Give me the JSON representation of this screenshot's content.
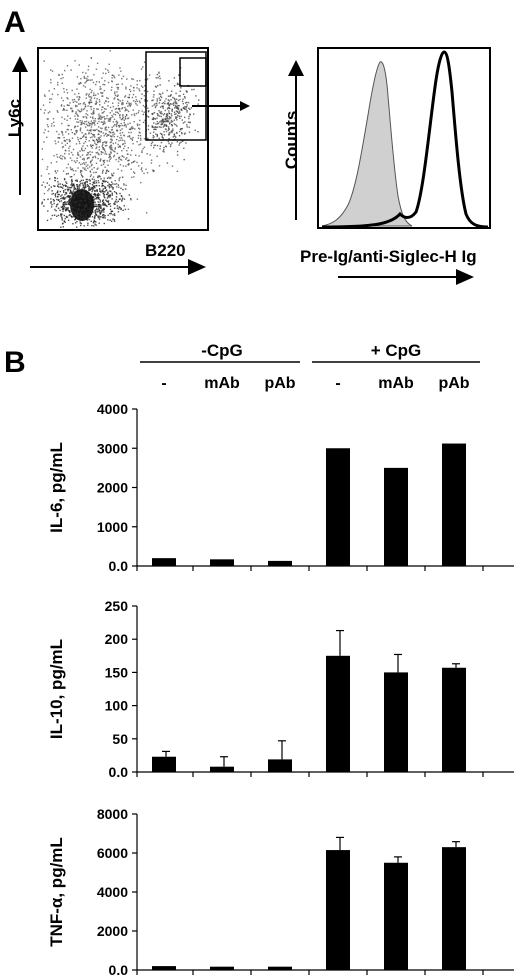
{
  "panel_a": {
    "label": "A",
    "scatter": {
      "ylabel": "Ly6c",
      "xlabel": "B220"
    },
    "histogram": {
      "ylabel": "Counts",
      "xlabel": "Pre-Ig/anti-Siglec-H Ig"
    }
  },
  "panel_b": {
    "label": "B",
    "groups": [
      "-CpG",
      "+ CpG"
    ],
    "conditions": [
      "-",
      "mAb",
      "pAb",
      "-",
      "mAb",
      "pAb"
    ]
  },
  "colors": {
    "bar": "#000000",
    "histogram_fill": "#d0d0d0"
  },
  "chart_data": [
    {
      "type": "bar",
      "ylabel": "IL-6, pg/mL",
      "categories": [
        "-",
        "mAb",
        "pAb",
        "-",
        "mAb",
        "pAb"
      ],
      "values": [
        200,
        170,
        130,
        3000,
        2500,
        3120
      ],
      "errors": [
        0,
        0,
        0,
        0,
        0,
        0
      ],
      "ylim": [
        0,
        4000
      ],
      "yticks": [
        0,
        1000,
        2000,
        3000,
        4000
      ],
      "yticklabels": [
        "0.0",
        "1000",
        "2000",
        "3000",
        "4000"
      ]
    },
    {
      "type": "bar",
      "ylabel": "IL-10, pg/mL",
      "categories": [
        "-",
        "mAb",
        "pAb",
        "-",
        "mAb",
        "pAb"
      ],
      "values": [
        23,
        8,
        19,
        175,
        150,
        157
      ],
      "errors": [
        8,
        15,
        28,
        38,
        27,
        6
      ],
      "ylim": [
        0,
        250
      ],
      "yticks": [
        0,
        50,
        100,
        150,
        200,
        250
      ],
      "yticklabels": [
        "0.0",
        "50",
        "100",
        "150",
        "200",
        "250"
      ]
    },
    {
      "type": "bar",
      "ylabel": "TNF-α, pg/mL",
      "categories": [
        "-",
        "mAb",
        "pAb",
        "-",
        "mAb",
        "pAb"
      ],
      "values": [
        200,
        170,
        170,
        6150,
        5500,
        6300
      ],
      "errors": [
        0,
        0,
        0,
        650,
        300,
        280
      ],
      "ylim": [
        0,
        8000
      ],
      "yticks": [
        0,
        2000,
        4000,
        6000,
        8000
      ],
      "yticklabels": [
        "0.0",
        "2000",
        "4000",
        "6000",
        "8000"
      ]
    }
  ]
}
